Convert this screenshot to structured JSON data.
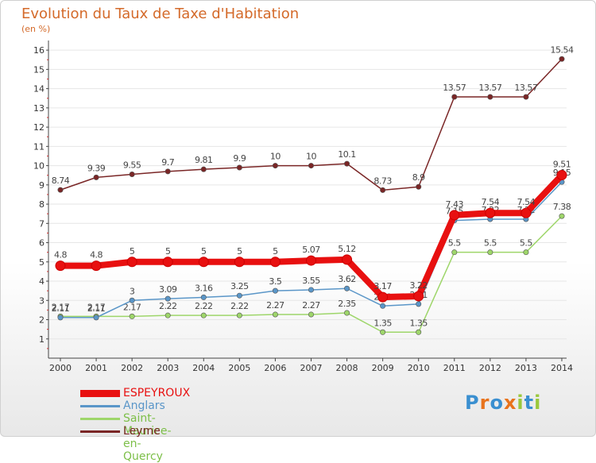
{
  "header": {
    "title": "Evolution du Taux de Taxe d'Habitation",
    "subtitle": "(en %)"
  },
  "logo": {
    "text": "Proxiti"
  },
  "chart_data": {
    "type": "line",
    "title": "Evolution du Taux de Taxe d'Habitation",
    "ylabel": "(en %)",
    "xlabel": "",
    "ylim": [
      0,
      16.5
    ],
    "yticks": [
      "1",
      "2",
      "3",
      "4",
      "5",
      "6",
      "7",
      "8",
      "9",
      "10",
      "11",
      "12",
      "13",
      "14",
      "15",
      "16"
    ],
    "categories": [
      "2000",
      "2001",
      "2002",
      "2003",
      "2004",
      "2005",
      "2006",
      "2007",
      "2008",
      "2009",
      "2010",
      "2011",
      "2012",
      "2013",
      "2014"
    ],
    "legend_position": "bottom-left",
    "series": [
      {
        "name": "Leyme",
        "color": "#7a2626",
        "values": [
          8.74,
          9.39,
          9.55,
          9.7,
          9.81,
          9.9,
          10,
          10,
          10.1,
          8.73,
          8.9,
          13.57,
          13.57,
          13.57,
          15.54
        ],
        "labels": [
          "8.74",
          "9.39",
          "9.55",
          "9.7",
          "9.81",
          "9.9",
          "10",
          "10",
          "10.1",
          "8.73",
          "8.9",
          "13.57",
          "13.57",
          "13.57",
          "15.54"
        ]
      },
      {
        "name": "Saint-Maurice-en-Quercy",
        "color": "#9ed66a",
        "values": [
          2.17,
          2.17,
          2.17,
          2.22,
          2.22,
          2.22,
          2.27,
          2.27,
          2.35,
          1.35,
          1.35,
          5.5,
          5.5,
          5.5,
          7.38
        ],
        "labels": [
          "2.17",
          "2.17",
          "2.17",
          "2.22",
          "2.22",
          "2.22",
          "2.27",
          "2.27",
          "2.35",
          "1.35",
          "1.35",
          "5.5",
          "5.5",
          "5.5",
          "7.38"
        ]
      },
      {
        "name": "Anglars",
        "color": "#5a96c8",
        "values": [
          2.11,
          2.11,
          3,
          3.09,
          3.16,
          3.25,
          3.5,
          3.55,
          3.62,
          2.71,
          2.81,
          7.15,
          7.22,
          7.22,
          9.15
        ],
        "labels": [
          "2.11",
          "2.11",
          "3",
          "3.09",
          "3.16",
          "3.25",
          "3.5",
          "3.55",
          "3.62",
          "2.71",
          "2.81",
          "7.15",
          "7.22",
          "7.22",
          "9.15"
        ]
      },
      {
        "name": "ESPEYROUX",
        "color": "#e81010",
        "values": [
          4.8,
          4.8,
          5,
          5,
          5,
          5,
          5,
          5.07,
          5.12,
          3.17,
          3.22,
          7.43,
          7.54,
          7.54,
          9.51
        ],
        "labels": [
          "4.8",
          "4.8",
          "5",
          "5",
          "5",
          "5",
          "5",
          "5.07",
          "5.12",
          "3.17",
          "3.22",
          "7.43",
          "7.54",
          "7.54",
          "9.51"
        ]
      }
    ],
    "legend": [
      "ESPEYROUX",
      "Anglars",
      "Saint-Maurice-en-Quercy",
      "Leyme"
    ]
  }
}
